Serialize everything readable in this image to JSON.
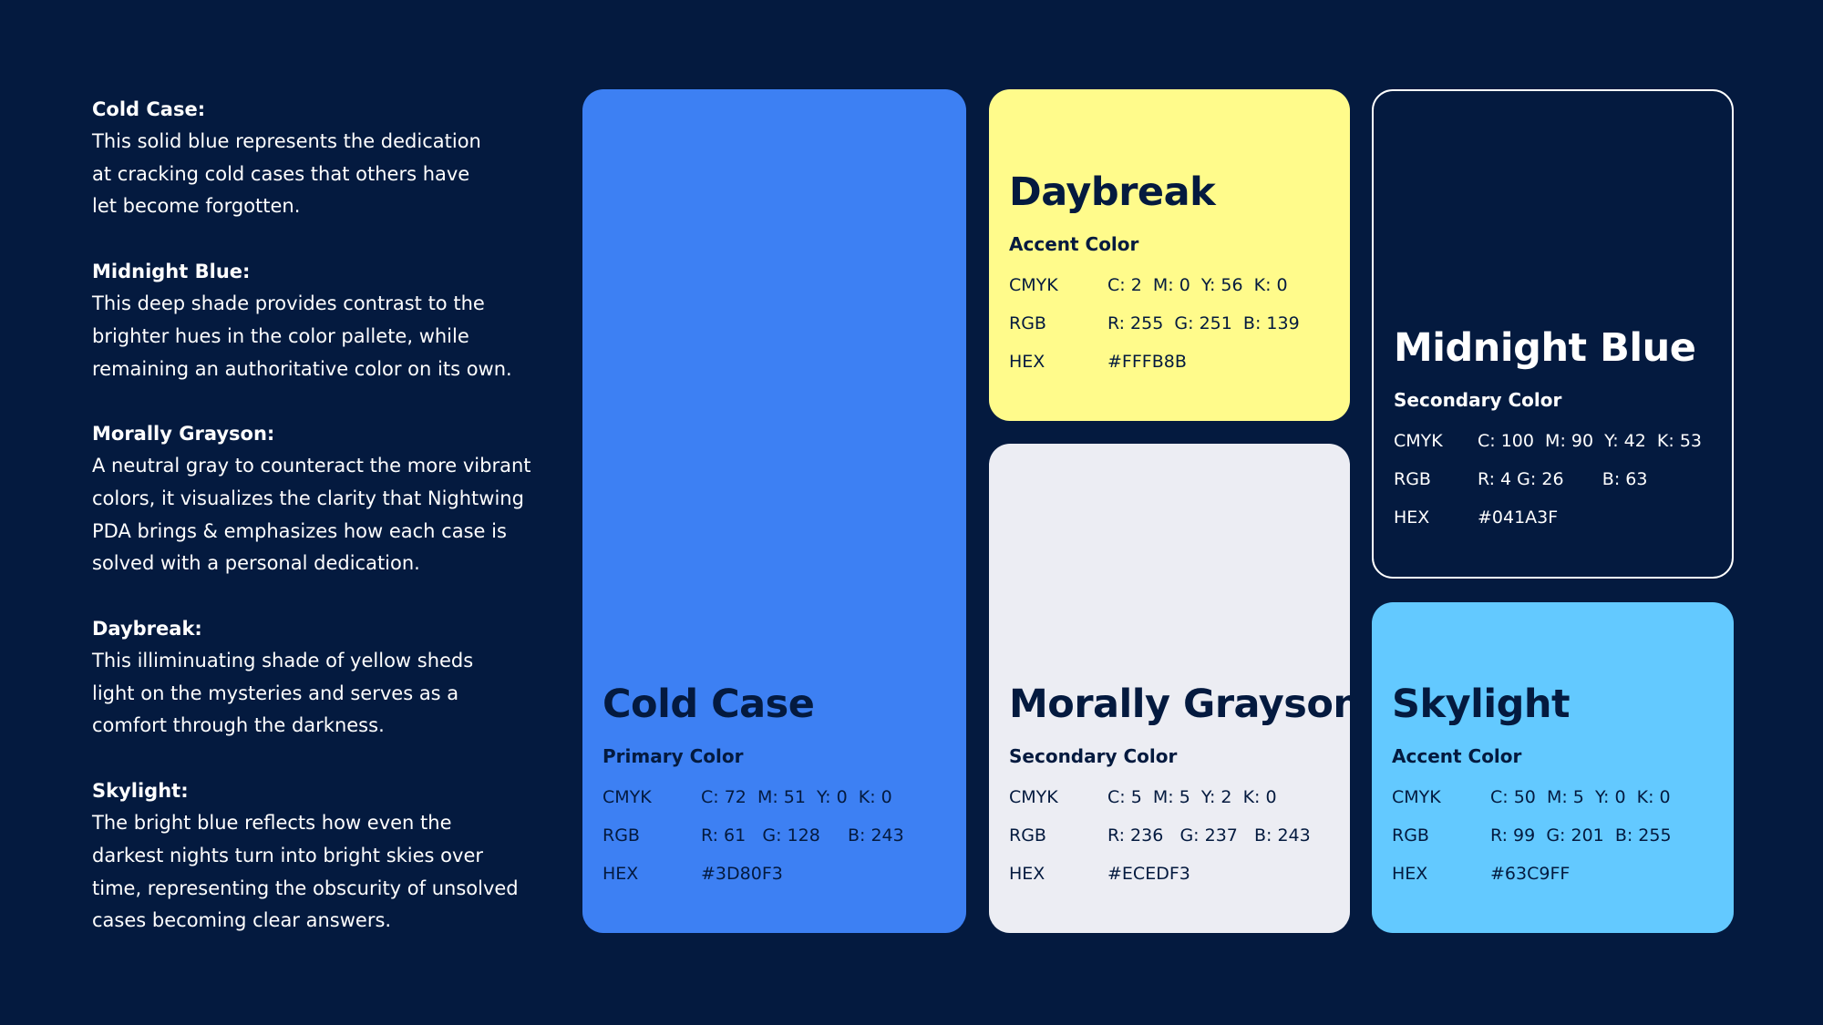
{
  "descriptions": [
    {
      "title": "Cold Case:",
      "lines": [
        "This solid blue represents the dedication",
        "at cracking cold cases that others have",
        "let become forgotten."
      ]
    },
    {
      "title": "Midnight Blue:",
      "lines": [
        "This deep shade provides contrast to the",
        "brighter hues in the color pallete, while",
        "remaining an authoritative color on its own."
      ]
    },
    {
      "title": "Morally Grayson:",
      "lines": [
        "A neutral gray to counteract the more vibrant",
        "colors, it visualizes the clarity that Nightwing",
        "PDA brings & emphasizes how each case is",
        "solved with a personal dedication."
      ]
    },
    {
      "title": "Daybreak:",
      "lines": [
        "This illiminuating shade of yellow sheds",
        "light on the mysteries and serves as a",
        "comfort through the darkness."
      ]
    },
    {
      "title": "Skylight:",
      "lines": [
        "The bright blue reflects how even the",
        "darkest nights turn into bright skies over",
        "time, representing the obscurity of unsolved",
        "cases becoming clear answers."
      ]
    }
  ],
  "cards": [
    {
      "name": "Cold Case",
      "role": "Primary Color",
      "rows": [
        [
          "CMYK",
          "C: 72  M: 51  Y: 0  K: 0"
        ],
        [
          "RGB",
          "R: 61   G: 128     B: 243"
        ],
        [
          "HEX",
          "#3D80F3"
        ]
      ]
    },
    {
      "name": "Daybreak",
      "role": "Accent Color",
      "rows": [
        [
          "CMYK",
          "C: 2  M: 0  Y: 56  K: 0"
        ],
        [
          "RGB",
          "R: 255  G: 251  B: 139"
        ],
        [
          "HEX",
          "#FFFB8B"
        ]
      ]
    },
    {
      "name": "Morally Grayson",
      "role": "Secondary Color",
      "rows": [
        [
          "CMYK",
          "C: 5  M: 5  Y: 2  K: 0"
        ],
        [
          "RGB",
          "R: 236   G: 237   B: 243"
        ],
        [
          "HEX",
          "#ECEDF3"
        ]
      ]
    },
    {
      "name": "Midnight Blue",
      "role": "Secondary Color",
      "rows": [
        [
          "CMYK",
          "C: 100  M: 90  Y: 42  K: 53"
        ],
        [
          "RGB",
          "R: 4 G: 26       B: 63"
        ],
        [
          "HEX",
          "#041A3F"
        ]
      ]
    },
    {
      "name": "Skylight",
      "role": "Accent Color",
      "rows": [
        [
          "CMYK",
          "C: 50  M: 5  Y: 0  K: 0"
        ],
        [
          "RGB",
          "R: 99  G: 201  B: 255"
        ],
        [
          "HEX",
          "#63C9FF"
        ]
      ]
    }
  ]
}
